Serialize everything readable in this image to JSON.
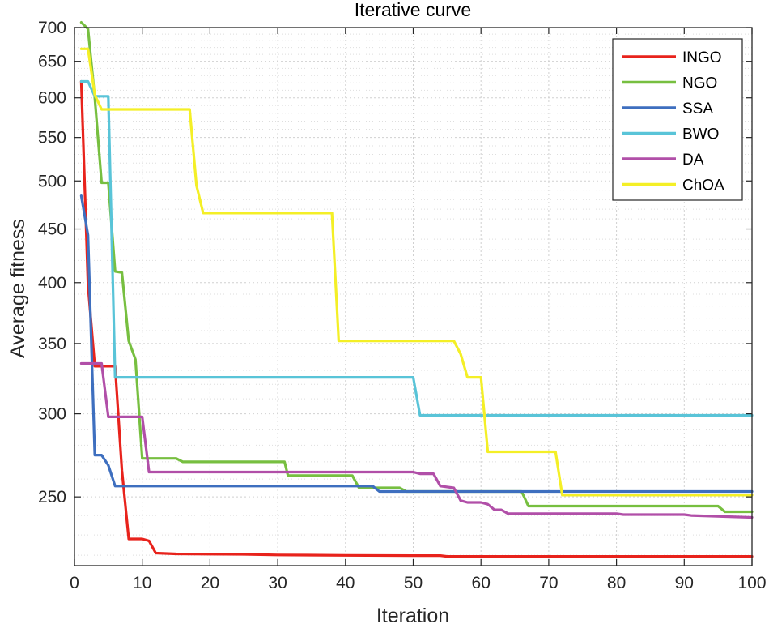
{
  "chart_data": {
    "type": "line",
    "title": "Iterative curve",
    "xlabel": "Iteration",
    "ylabel": "Average fitness",
    "y_scale": "log",
    "xlim": [
      0,
      100
    ],
    "ylim": [
      215,
      700
    ],
    "xticks": [
      0,
      10,
      20,
      30,
      40,
      50,
      60,
      70,
      80,
      90,
      100
    ],
    "yticks": [
      250,
      300,
      350,
      400,
      450,
      500,
      550,
      600,
      650,
      700
    ],
    "grid": true,
    "legend_position": "top-right",
    "series": [
      {
        "name": "INGO",
        "color": "#e8231c",
        "points": [
          [
            1,
            622
          ],
          [
            2,
            398
          ],
          [
            3,
            333
          ],
          [
            4,
            333
          ],
          [
            5,
            333
          ],
          [
            6,
            333
          ],
          [
            7,
            265
          ],
          [
            8,
            228
          ],
          [
            10,
            228
          ],
          [
            11,
            227
          ],
          [
            12,
            221
          ],
          [
            15,
            220.6
          ],
          [
            25,
            220.4
          ],
          [
            30,
            220.1
          ],
          [
            40,
            219.9
          ],
          [
            50,
            219.8
          ],
          [
            54,
            219.8
          ],
          [
            55,
            219.4
          ],
          [
            100,
            219.4
          ]
        ]
      },
      {
        "name": "NGO",
        "color": "#77bf40",
        "points": [
          [
            1,
            708
          ],
          [
            2,
            698
          ],
          [
            3,
            600
          ],
          [
            4,
            498
          ],
          [
            5,
            498
          ],
          [
            6,
            410
          ],
          [
            7,
            409
          ],
          [
            8,
            352
          ],
          [
            9,
            338
          ],
          [
            10,
            272
          ],
          [
            15,
            272
          ],
          [
            16,
            270
          ],
          [
            31,
            270
          ],
          [
            31.5,
            262
          ],
          [
            41,
            262
          ],
          [
            42,
            255
          ],
          [
            48,
            255
          ],
          [
            49,
            253
          ],
          [
            66,
            253
          ],
          [
            67,
            245
          ],
          [
            95,
            245
          ],
          [
            96,
            242
          ],
          [
            100,
            242
          ]
        ]
      },
      {
        "name": "SSA",
        "color": "#3e6fbf",
        "points": [
          [
            1,
            484
          ],
          [
            2,
            444
          ],
          [
            3,
            274
          ],
          [
            4,
            274
          ],
          [
            5,
            268
          ],
          [
            6,
            256
          ],
          [
            44,
            256
          ],
          [
            45,
            253
          ],
          [
            100,
            253
          ]
        ]
      },
      {
        "name": "BWO",
        "color": "#59c4d8",
        "points": [
          [
            1,
            622
          ],
          [
            2,
            622
          ],
          [
            3,
            602
          ],
          [
            4,
            602
          ],
          [
            5,
            602
          ],
          [
            6,
            325
          ],
          [
            50,
            325
          ],
          [
            51,
            299
          ],
          [
            100,
            299
          ]
        ]
      },
      {
        "name": "DA",
        "color": "#b14fa8",
        "points": [
          [
            1,
            335
          ],
          [
            3,
            335
          ],
          [
            4,
            335
          ],
          [
            5,
            298
          ],
          [
            10,
            298
          ],
          [
            11,
            264
          ],
          [
            50,
            264
          ],
          [
            51,
            263
          ],
          [
            53,
            263
          ],
          [
            54,
            256
          ],
          [
            56,
            255
          ],
          [
            57,
            248
          ],
          [
            58,
            247
          ],
          [
            60,
            247
          ],
          [
            61,
            246
          ],
          [
            62,
            243
          ],
          [
            63,
            243
          ],
          [
            64,
            241
          ],
          [
            80,
            241
          ],
          [
            81,
            240.5
          ],
          [
            90,
            240.5
          ],
          [
            91,
            240
          ],
          [
            100,
            239
          ]
        ]
      },
      {
        "name": "ChOA",
        "color": "#f4ef26",
        "points": [
          [
            1,
            668
          ],
          [
            2,
            668
          ],
          [
            3,
            604
          ],
          [
            4,
            585
          ],
          [
            5,
            585
          ],
          [
            17,
            585
          ],
          [
            18,
            495
          ],
          [
            19,
            466
          ],
          [
            38,
            466
          ],
          [
            39,
            352
          ],
          [
            56,
            352
          ],
          [
            57,
            342
          ],
          [
            58,
            325
          ],
          [
            60,
            325
          ],
          [
            61,
            276
          ],
          [
            71,
            276
          ],
          [
            72,
            251
          ],
          [
            100,
            251
          ]
        ]
      }
    ]
  }
}
